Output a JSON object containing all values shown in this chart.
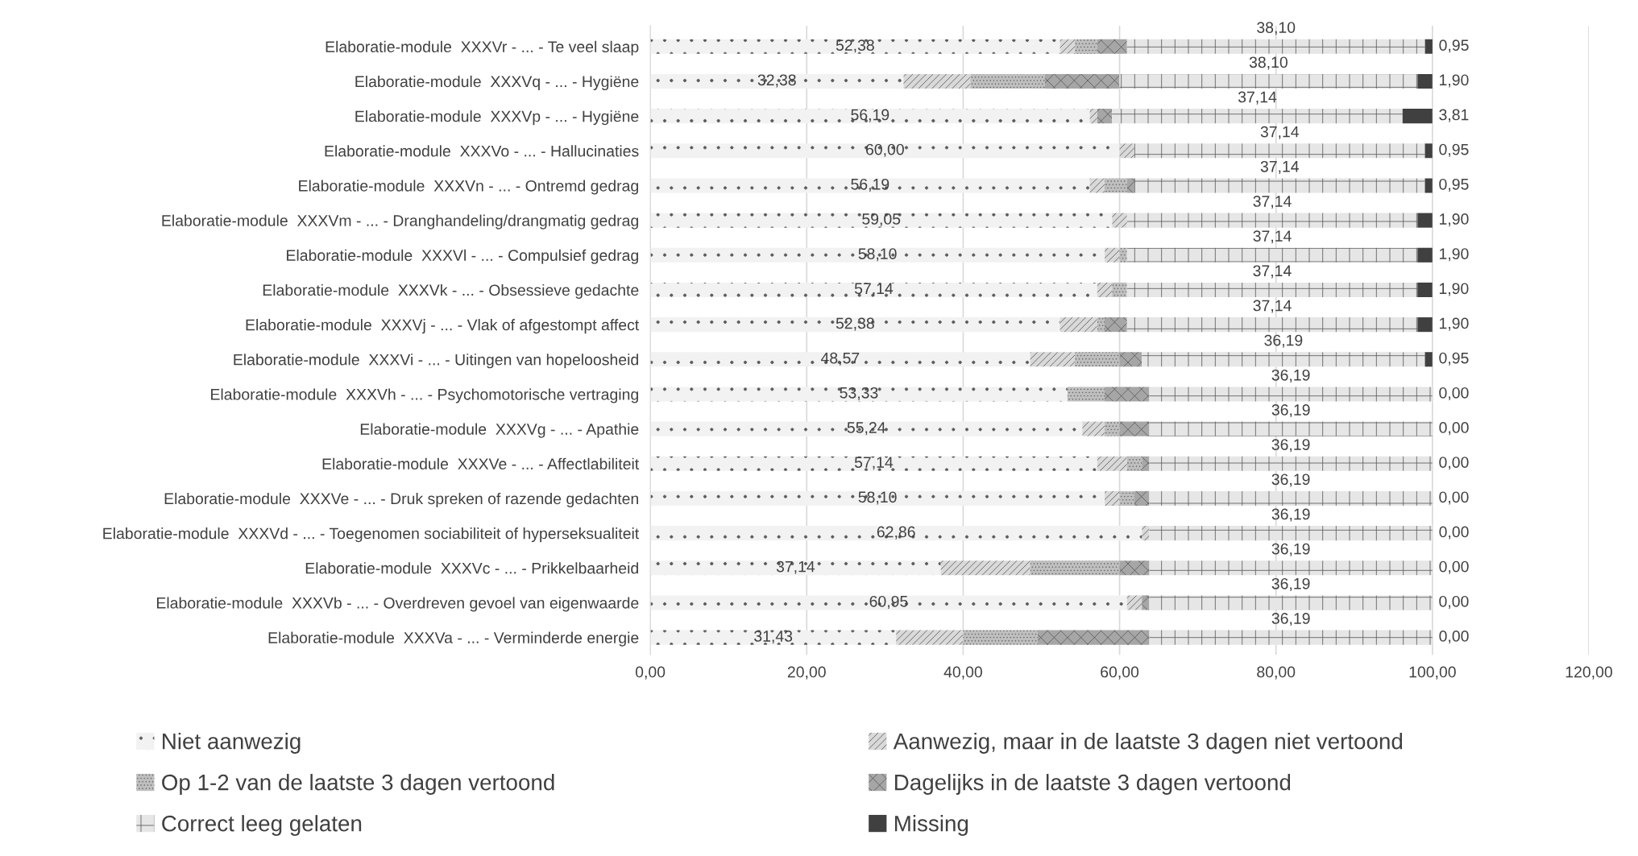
{
  "chart_data": {
    "type": "bar",
    "orientation": "horizontal",
    "stacked": true,
    "categories": [
      "Elaboratie-module  XXXVr - ... - Te veel slaap",
      "Elaboratie-module  XXXVq - ... - Hygiëne",
      "Elaboratie-module  XXXVp - ... - Hygiëne",
      "Elaboratie-module  XXXVo - ... - Hallucinaties",
      "Elaboratie-module  XXXVn - ... - Ontremd gedrag",
      "Elaboratie-module  XXXVm - ... - Dranghandeling/drangmatig gedrag",
      "Elaboratie-module  XXXVl - ... - Compulsief gedrag",
      "Elaboratie-module  XXXVk - ... - Obsessieve gedachte",
      "Elaboratie-module  XXXVj - ... - Vlak of afgestompt affect",
      "Elaboratie-module  XXXVi - ... - Uitingen van hopeloosheid",
      "Elaboratie-module  XXXVh - ... - Psychomotorische vertraging",
      "Elaboratie-module  XXXVg - ... - Apathie",
      "Elaboratie-module  XXXVe - ... - Affectlabiliteit",
      "Elaboratie-module  XXXVe - ... - Druk spreken of razende gedachten",
      "Elaboratie-module  XXXVd - ... - Toegenomen sociabiliteit of hyperseksualiteit",
      "Elaboratie-module  XXXVc - ... - Prikkelbaarheid",
      "Elaboratie-module  XXXVb - ... - Overdreven gevoel van eigenwaarde",
      "Elaboratie-module  XXXVa - ... - Verminderde energie"
    ],
    "series": [
      {
        "name": "Niet aanwezig",
        "color": "#f2f2f2",
        "values": [
          52.38,
          32.38,
          56.19,
          60.0,
          56.19,
          59.05,
          58.1,
          57.14,
          52.38,
          48.57,
          53.33,
          55.24,
          57.14,
          58.1,
          62.86,
          37.14,
          60.95,
          31.43
        ],
        "value_labels": [
          "52,38",
          "32,38",
          "56,19",
          "60,00",
          "56,19",
          "59,05",
          "58,10",
          "57,14",
          "52,38",
          "48,57",
          "53,33",
          "55,24",
          "57,14",
          "58,10",
          "62,86",
          "37,14",
          "60,95",
          "31,43"
        ]
      },
      {
        "name": "Aanwezig, maar in de laatste 3 dagen niet vertoond",
        "color": "#d9d9d9",
        "values": [
          1.9,
          8.57,
          0.95,
          1.9,
          1.9,
          1.9,
          1.9,
          1.9,
          4.76,
          5.71,
          0,
          2.86,
          3.81,
          1.9,
          0.95,
          11.43,
          1.9,
          8.57
        ]
      },
      {
        "name": "Op 1-2 van de laatste 3 dagen vertoond",
        "color": "#bfbfbf",
        "values": [
          2.86,
          9.52,
          0,
          0,
          2.86,
          0,
          0.95,
          1.9,
          0.95,
          5.71,
          4.76,
          1.9,
          1.9,
          1.9,
          0,
          11.43,
          0,
          9.52
        ]
      },
      {
        "name": "Dagelijks in de laatste 3 dagen vertoond",
        "color": "#a6a6a6",
        "values": [
          3.81,
          9.52,
          1.9,
          0,
          0.95,
          0,
          0,
          0,
          2.86,
          2.86,
          5.71,
          3.81,
          0.95,
          1.9,
          0,
          3.81,
          0.95,
          14.29
        ]
      },
      {
        "name": "Correct leeg gelaten",
        "color": "#e6e6e6",
        "values": [
          38.1,
          38.1,
          37.14,
          37.14,
          37.14,
          37.14,
          37.14,
          37.14,
          37.14,
          36.19,
          36.19,
          36.19,
          36.19,
          36.19,
          36.19,
          36.19,
          36.19,
          36.19
        ],
        "value_labels": [
          "38,10",
          "38,10",
          "37,14",
          "37,14",
          "37,14",
          "37,14",
          "37,14",
          "37,14",
          "37,14",
          "36,19",
          "36,19",
          "36,19",
          "36,19",
          "36,19",
          "36,19",
          "36,19",
          "36,19",
          "36,19"
        ]
      },
      {
        "name": "Missing",
        "color": "#404040",
        "values": [
          0.95,
          1.9,
          3.81,
          0.95,
          0.95,
          1.9,
          1.9,
          1.9,
          1.9,
          0.95,
          0,
          0,
          0,
          0,
          0,
          0,
          0,
          0
        ],
        "value_labels": [
          "0,95",
          "1,90",
          "3,81",
          "0,95",
          "0,95",
          "1,90",
          "1,90",
          "1,90",
          "1,90",
          "0,95",
          "0,00",
          "0,00",
          "0,00",
          "0,00",
          "0,00",
          "0,00",
          "0,00",
          "0,00"
        ]
      }
    ],
    "xlim": [
      0,
      120
    ],
    "xticks": [
      {
        "value": 0,
        "label": "0,00"
      },
      {
        "value": 20,
        "label": "20,00"
      },
      {
        "value": 40,
        "label": "40,00"
      },
      {
        "value": 60,
        "label": "60,00"
      },
      {
        "value": 80,
        "label": "80,00"
      },
      {
        "value": 100,
        "label": "100,00"
      },
      {
        "value": 120,
        "label": "120,00"
      }
    ],
    "grid": "x",
    "legend": "bottom"
  }
}
